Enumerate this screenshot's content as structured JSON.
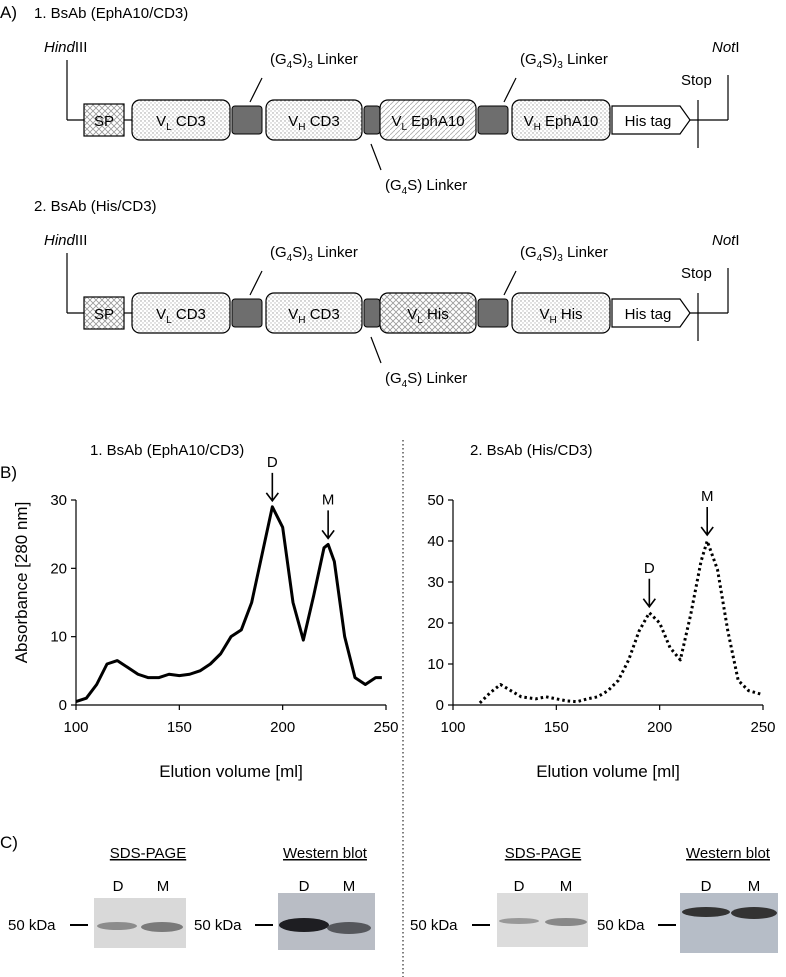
{
  "panel_a": {
    "label": "A)",
    "constructs": [
      {
        "title": "1. BsAb (EphA10/CD3)",
        "hind": [
          "Hind",
          "III"
        ],
        "not": [
          "Not",
          "I"
        ],
        "linker_left": [
          "(G",
          "4",
          "S)",
          "3",
          " Linker"
        ],
        "linker_right": [
          "(G",
          "4",
          "S)",
          "3",
          " Linker"
        ],
        "linker_short": [
          "(G",
          "4",
          "S) Linker"
        ],
        "stop": "Stop",
        "domains": [
          [
            "SP"
          ],
          [
            "V",
            "L",
            " CD3"
          ],
          [
            "V",
            "H",
            " CD3"
          ],
          [
            "V",
            "L",
            " EphA10"
          ],
          [
            "V",
            "H",
            " EphA10"
          ]
        ],
        "his_tag": "His tag"
      },
      {
        "title": "2. BsAb (His/CD3)",
        "hind": [
          "Hind",
          "III"
        ],
        "not": [
          "Not",
          "I"
        ],
        "linker_left": [
          "(G",
          "4",
          "S)",
          "3",
          " Linker"
        ],
        "linker_right": [
          "(G",
          "4",
          "S)",
          "3",
          " Linker"
        ],
        "linker_short": [
          "(G",
          "4",
          "S) Linker"
        ],
        "stop": "Stop",
        "domains": [
          [
            "SP"
          ],
          [
            "V",
            "L",
            " CD3"
          ],
          [
            "V",
            "H",
            " CD3"
          ],
          [
            "V",
            "L",
            " His"
          ],
          [
            "V",
            "H",
            " His"
          ]
        ],
        "his_tag": "His tag"
      }
    ]
  },
  "panel_b": {
    "label": "B)"
  },
  "chart_data": [
    {
      "type": "line",
      "title": "1. BsAb (EphA10/CD3)",
      "x_label": "Elution volume [ml]",
      "y_label": "Absorbance [280 nm]",
      "x": [
        100,
        105,
        110,
        115,
        120,
        125,
        130,
        135,
        140,
        145,
        150,
        155,
        160,
        165,
        170,
        175,
        180,
        185,
        190,
        195,
        200,
        205,
        210,
        215,
        220,
        222,
        225,
        230,
        235,
        240,
        245,
        248
      ],
      "series": [
        {
          "color": "#000000",
          "line_style": "solid",
          "values": [
            0.5,
            1,
            3,
            6,
            6.5,
            5.5,
            4.5,
            4,
            4,
            4.5,
            4.3,
            4.5,
            5,
            6,
            7.5,
            10,
            11,
            15,
            22,
            29,
            26,
            15,
            9.5,
            16,
            23,
            23.5,
            21,
            10,
            4,
            3,
            4,
            4
          ]
        }
      ],
      "xlim": [
        100,
        250
      ],
      "xticks": [
        100,
        150,
        200,
        250
      ],
      "ylim": [
        0,
        30
      ],
      "yticks": [
        0,
        10,
        20,
        30
      ],
      "annotations": [
        {
          "text": "D",
          "x": 195
        },
        {
          "text": "M",
          "x": 222
        }
      ]
    },
    {
      "type": "line",
      "title": "2. BsAb (His/CD3)",
      "x_label": "Elution volume [ml]",
      "x": [
        113,
        118,
        123,
        128,
        133,
        140,
        145,
        150,
        155,
        160,
        165,
        170,
        175,
        180,
        185,
        190,
        195,
        200,
        205,
        210,
        215,
        220,
        223,
        228,
        233,
        238,
        243,
        250
      ],
      "series": [
        {
          "color": "#000000",
          "line_style": "dotted",
          "values": [
            0.5,
            3,
            5,
            3.5,
            2,
            1.5,
            2,
            1.5,
            1,
            0.8,
            1.5,
            2,
            3.5,
            6,
            11,
            18,
            22.5,
            20,
            14,
            11,
            22,
            35,
            40,
            33,
            18,
            6,
            3.5,
            2.5
          ]
        }
      ],
      "xlim": [
        100,
        250
      ],
      "xticks": [
        100,
        150,
        200,
        250
      ],
      "ylim": [
        0,
        50
      ],
      "yticks": [
        0,
        10,
        20,
        30,
        40,
        50
      ],
      "annotations": [
        {
          "text": "D",
          "x": 195
        },
        {
          "text": "M",
          "x": 223
        }
      ]
    }
  ],
  "panel_c": {
    "label": "C)",
    "left": {
      "sds_title": "SDS-PAGE",
      "wb_title": "Western blot",
      "sds_lanes": [
        "D",
        "M"
      ],
      "wb_lanes": [
        "D",
        "M"
      ],
      "sds_marker": "50 kDa",
      "wb_marker": "50 kDa"
    },
    "right": {
      "sds_title": "SDS-PAGE",
      "wb_title": "Western blot",
      "sds_lanes": [
        "D",
        "M"
      ],
      "wb_lanes": [
        "D",
        "M"
      ],
      "sds_marker": "50 kDa",
      "wb_marker": "50 kDa"
    }
  }
}
